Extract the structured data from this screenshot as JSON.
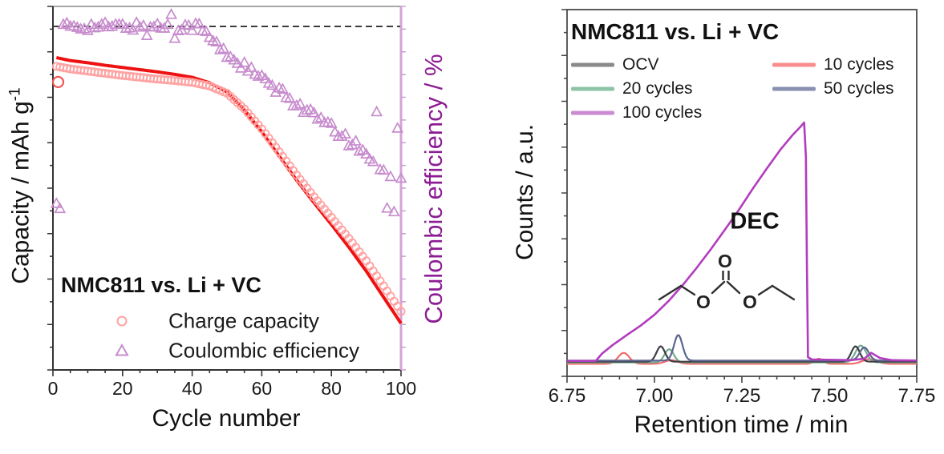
{
  "page": {
    "background": "#ffffff"
  },
  "chart_data": [
    {
      "type": "scatter",
      "panel": "left",
      "title": "NMC811 vs. Li + VC",
      "xlabel": "Cycle number",
      "ylabel_left_main": "Capacity / mAh g",
      "ylabel_left_sup": "-1",
      "ylabel_right": "Coulombic efficiency / %",
      "xlim": [
        0,
        100
      ],
      "xticks": [
        0,
        20,
        40,
        60,
        80,
        100
      ],
      "x_tick_labels": [
        "0",
        "20",
        "40",
        "60",
        "80",
        "100"
      ],
      "y_axes_note": "both y axes show ticks only, no numeric labels; values below are normalized 0-1 of axis height",
      "grid": false,
      "dashed_guideline_y": 0.945,
      "dashed_guideline_color": "#3c3c3c",
      "right_axis_color": "#d4a3d8",
      "ylabel_right_color": "#8c1d94",
      "series": [
        {
          "name": "Charge capacity",
          "marker": "circle",
          "color": "#ffa2a2",
          "anchors": [
            [
              1,
              0.835
            ],
            [
              5,
              0.828
            ],
            [
              10,
              0.822
            ],
            [
              15,
              0.816
            ],
            [
              20,
              0.81
            ],
            [
              25,
              0.805
            ],
            [
              30,
              0.8
            ],
            [
              35,
              0.796
            ],
            [
              40,
              0.791
            ],
            [
              45,
              0.781
            ],
            [
              50,
              0.761
            ],
            [
              55,
              0.718
            ],
            [
              60,
              0.663
            ],
            [
              65,
              0.6
            ],
            [
              70,
              0.536
            ],
            [
              75,
              0.476
            ],
            [
              80,
              0.42
            ],
            [
              85,
              0.362
            ],
            [
              90,
              0.3
            ],
            [
              95,
              0.231
            ],
            [
              100,
              0.161
            ]
          ],
          "outlier_point": [
            1.5,
            0.792
          ]
        },
        {
          "name": "Capacity trend",
          "marker": "line",
          "color": "#ee1111",
          "anchors": [
            [
              1,
              0.859
            ],
            [
              5,
              0.851
            ],
            [
              10,
              0.845
            ],
            [
              15,
              0.838
            ],
            [
              20,
              0.832
            ],
            [
              25,
              0.826
            ],
            [
              30,
              0.82
            ],
            [
              35,
              0.813
            ],
            [
              40,
              0.805
            ],
            [
              45,
              0.79
            ],
            [
              50,
              0.765
            ],
            [
              55,
              0.715
            ],
            [
              60,
              0.655
            ],
            [
              65,
              0.588
            ],
            [
              70,
              0.522
            ],
            [
              75,
              0.46
            ],
            [
              80,
              0.4
            ],
            [
              85,
              0.338
            ],
            [
              90,
              0.272
            ],
            [
              95,
              0.2
            ],
            [
              100,
              0.128
            ]
          ]
        },
        {
          "name": "Coulombic efficiency",
          "marker": "triangle",
          "color": "#c78ccd",
          "plateau_range": [
            3,
            42
          ],
          "plateau_value": 0.945,
          "plateau_jitter": 0.012,
          "decline_anchors": [
            [
              43,
              0.935
            ],
            [
              46,
              0.905
            ],
            [
              49,
              0.875
            ],
            [
              55,
              0.835
            ],
            [
              60,
              0.8
            ],
            [
              65,
              0.765
            ],
            [
              70,
              0.733
            ],
            [
              75,
              0.7
            ],
            [
              80,
              0.665
            ],
            [
              85,
              0.63
            ],
            [
              90,
              0.595
            ],
            [
              95,
              0.556
            ],
            [
              100,
              0.52
            ]
          ],
          "decline_jitter": 0.014,
          "outliers": {
            "1": 0.458,
            "2": 0.444,
            "27": 0.92,
            "34": 0.978,
            "35": 0.912,
            "93": 0.71,
            "96": 0.445,
            "98": 0.435,
            "99": 0.665
          }
        }
      ]
    },
    {
      "type": "line",
      "panel": "right",
      "title": "NMC811 vs. Li + VC",
      "xlabel": "Retention time / min",
      "ylabel": "Counts / a.u.",
      "xlim": [
        6.75,
        7.75
      ],
      "xticks": [
        6.75,
        7.0,
        7.25,
        7.5,
        7.75
      ],
      "x_tick_labels": [
        "6.75",
        "7.00",
        "7.25",
        "7.50",
        "7.75"
      ],
      "y_axis_note": "y axis shows ticks only (arbitrary units); trace values normalized 0-1 of axis height",
      "grid": false,
      "annotation": "DEC",
      "molecule": {
        "name": "diethyl carbonate skeletal structure",
        "atom_labels": [
          "O",
          "O",
          "O"
        ]
      },
      "series": [
        {
          "name": "OCV",
          "color": "#3f3f46",
          "legend_color": "#8a8a8a",
          "baseline": 0.04,
          "peaks": [
            [
              7.018,
              0.042,
              0.012
            ],
            [
              7.575,
              0.042,
              0.012
            ]
          ]
        },
        {
          "name": "10 cycles",
          "color": "#f26a6a",
          "legend_color": "#f98c8c",
          "baseline": 0.034,
          "peaks": [
            [
              6.912,
              0.03,
              0.016
            ],
            [
              7.048,
              0.01,
              0.018
            ],
            [
              7.47,
              0.014,
              0.012
            ],
            [
              7.615,
              0.013,
              0.02
            ]
          ]
        },
        {
          "name": "20 cycles",
          "color": "#74ac90",
          "legend_color": "#8fc3a7",
          "baseline": 0.038,
          "peaks": [
            [
              7.042,
              0.036,
              0.013
            ],
            [
              7.59,
              0.046,
              0.015
            ]
          ]
        },
        {
          "name": "50 cycles",
          "color": "#5d6590",
          "legend_color": "#8a91b0",
          "baseline": 0.043,
          "peaks": [
            [
              7.068,
              0.07,
              0.012
            ],
            [
              7.6,
              0.036,
              0.013
            ]
          ]
        },
        {
          "name": "100 cycles",
          "color": "#b23cbe",
          "legend_color": "#cb8ad2",
          "baseline": 0.042,
          "points": [
            [
              6.75,
              0.042
            ],
            [
              6.832,
              0.042
            ],
            [
              6.85,
              0.062
            ],
            [
              6.88,
              0.085
            ],
            [
              6.92,
              0.112
            ],
            [
              6.96,
              0.138
            ],
            [
              7.0,
              0.168
            ],
            [
              7.04,
              0.205
            ],
            [
              7.08,
              0.248
            ],
            [
              7.12,
              0.295
            ],
            [
              7.16,
              0.345
            ],
            [
              7.2,
              0.398
            ],
            [
              7.24,
              0.452
            ],
            [
              7.28,
              0.51
            ],
            [
              7.32,
              0.565
            ],
            [
              7.36,
              0.618
            ],
            [
              7.395,
              0.658
            ],
            [
              7.415,
              0.678
            ],
            [
              7.428,
              0.692
            ],
            [
              7.433,
              0.6
            ],
            [
              7.436,
              0.3
            ],
            [
              7.439,
              0.052
            ],
            [
              7.45,
              0.046
            ],
            [
              7.56,
              0.044
            ],
            [
              7.6,
              0.048
            ],
            [
              7.62,
              0.064
            ],
            [
              7.645,
              0.05
            ],
            [
              7.68,
              0.044
            ],
            [
              7.75,
              0.043
            ]
          ]
        }
      ]
    }
  ]
}
